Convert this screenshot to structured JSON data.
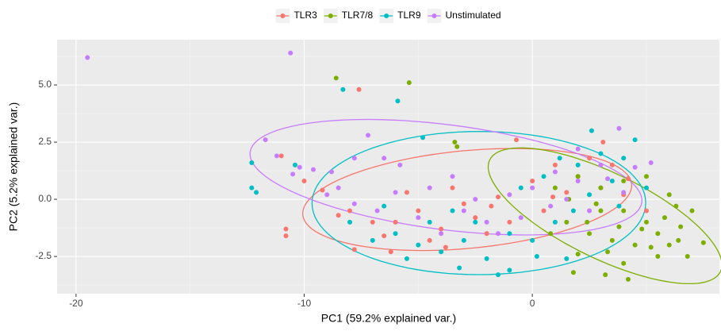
{
  "chart_data": {
    "type": "scatter",
    "xlabel": "PC1 (59.2% explained var.)",
    "ylabel": "PC2 (5.2% explained var.)",
    "xlim": [
      -20.83,
      8.2
    ],
    "ylim": [
      -4.13,
      6.98
    ],
    "xticks": [
      -20,
      -10,
      0
    ],
    "yticks": [
      -2.5,
      {
        "value": 0,
        "label": "0.0"
      },
      2.5,
      {
        "value": 5,
        "label": "5.0"
      }
    ],
    "grid": true,
    "legend": "top",
    "series": [
      {
        "name": "TLR3",
        "color": "#F8766D",
        "x": [
          -7.6,
          -11,
          -10.8,
          -10.8,
          -10,
          -8,
          -7,
          -6,
          -5,
          -4,
          -3,
          -2,
          -1,
          0,
          1,
          2,
          3,
          4,
          5,
          -7.8,
          -6.5,
          -4.5,
          -3.5,
          -2.5,
          -1.5,
          0.5,
          1.5,
          2.5,
          3.5,
          4.2,
          -0.7,
          -5.5,
          -6.2,
          -8.5,
          2.8,
          -3.8,
          -1.8,
          0.9,
          3.1,
          -9.2
        ],
        "values": [
          4.8,
          1.9,
          -1.3,
          -1.6,
          0.8,
          -0.5,
          -1,
          -1,
          -0.5,
          -1.3,
          -0.2,
          -1.5,
          -1,
          0.8,
          1.5,
          1,
          0.5,
          0.2,
          -0.5,
          -2.2,
          -1.6,
          -1.8,
          0.5,
          -0.8,
          0.1,
          -0.5,
          0.3,
          1.8,
          1.5,
          0.9,
          2.6,
          0.3,
          -2.3,
          -0.7,
          -0.2,
          -2.1,
          -0.3,
          0.1,
          2.5,
          0.4
        ]
      },
      {
        "name": "TLR7/8",
        "color": "#7CAE00",
        "x": [
          -8.6,
          -5.4,
          -3.4,
          -3.3,
          1,
          2,
          3,
          4,
          5,
          6,
          7,
          6.5,
          5.5,
          4.5,
          3.5,
          2.5,
          1.5,
          3,
          4,
          5,
          6,
          7.5,
          6.8,
          5.5,
          4,
          3.2,
          1.8,
          2,
          4.2,
          2.8,
          3.8,
          5.8,
          6.4,
          4.8,
          1.6,
          2.4,
          5.2,
          3.3,
          6.3,
          0.8
        ],
        "values": [
          5.3,
          5.1,
          2.5,
          2.3,
          0.5,
          1,
          0.5,
          0.8,
          1,
          0.2,
          -0.5,
          -1.2,
          -1.5,
          -2,
          -1.8,
          -1.5,
          -1,
          -0.5,
          -0.5,
          -1,
          -2,
          -1.9,
          -2.5,
          -2.5,
          -2.8,
          -3.3,
          -3.2,
          -2.4,
          -3.5,
          -0.2,
          -1.2,
          -0.8,
          -1.8,
          -1.3,
          0,
          -1,
          -2.1,
          -2.3,
          -0.3,
          -1.5
        ]
      },
      {
        "name": "TLR9",
        "color": "#00BFC4",
        "x": [
          -8.3,
          -5.9,
          -12.3,
          -12.3,
          -12.1,
          -10.4,
          -4.8,
          -8,
          -6,
          -5,
          -4,
          -3,
          -2,
          -1.5,
          -1,
          -2.5,
          -3.5,
          -1,
          0,
          1,
          1.5,
          2,
          2.6,
          3,
          4,
          5,
          4.5,
          3.5,
          0.5,
          -0.5,
          -4.5,
          -6.5,
          -7,
          2.5,
          1.8,
          -3.2,
          0.2,
          3.8,
          -5.5,
          1.2
        ],
        "values": [
          4.8,
          4.3,
          1.6,
          0.5,
          0.3,
          1.5,
          2.7,
          -1,
          -1.5,
          -2,
          -2.3,
          -1.8,
          -2.6,
          -3.3,
          -3.1,
          -1,
          -0.5,
          -1.5,
          -1.8,
          -1,
          -2.6,
          1.5,
          3,
          2,
          1.8,
          0.5,
          2.6,
          0.8,
          1,
          0.5,
          -1,
          -0.3,
          -1.8,
          0.2,
          -0.5,
          -3,
          -2.5,
          -0.3,
          -2.6,
          1.8
        ]
      },
      {
        "name": "Unstimulated",
        "color": "#C77CFF",
        "x": [
          -19.5,
          -10.6,
          -11.7,
          -10.2,
          -10.5,
          -9.6,
          -8.8,
          -7.8,
          -7.2,
          -6.5,
          -5.8,
          -8.5,
          -9,
          -6,
          -4.5,
          -3,
          -2,
          -1,
          0,
          1,
          2,
          3,
          3.8,
          4.5,
          -4,
          -5,
          -6.8,
          -2.5,
          1.5,
          2.5,
          -1.5,
          4,
          5.2,
          -3.5,
          -0.5,
          2,
          -11.2,
          -7.8,
          0.8,
          3.3
        ],
        "values": [
          6.2,
          6.4,
          2.6,
          1.4,
          1.1,
          1.3,
          1.2,
          1.8,
          2.8,
          1.8,
          1.5,
          0.5,
          0.2,
          0.3,
          0.5,
          -0.5,
          -1,
          0.2,
          0.5,
          1.2,
          0.8,
          1.5,
          3.1,
          1.4,
          -1.5,
          -0.8,
          -0.5,
          0,
          0,
          -0.5,
          -1.5,
          0.3,
          1.6,
          1,
          -0.8,
          2.2,
          1.9,
          -0.2,
          -0.3,
          0.9
        ]
      }
    ]
  }
}
